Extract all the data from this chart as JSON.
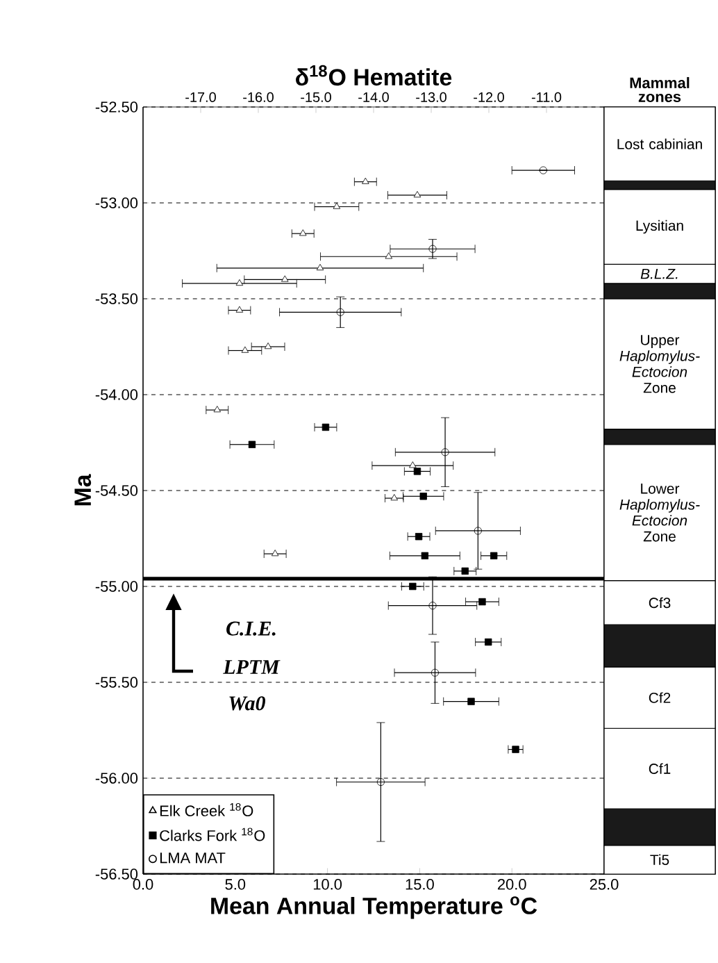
{
  "chart_data": [
    {
      "type": "scatter",
      "x2label": "δ$^{18}$O Hematite",
      "xlabel": "Mean Annual Temperature $^{o}$C",
      "ylabel": "Ma",
      "annotations": [
        "C.I.E.",
        "LPTM",
        "Wa0"
      ],
      "xlim": [
        0,
        25
      ],
      "ylim": [
        -56.5,
        -52.5
      ],
      "xticks": [
        {
          "value": 0,
          "label": "0.0"
        },
        {
          "value": 5,
          "label": "5.0"
        },
        {
          "value": 10,
          "label": "10.0"
        },
        {
          "value": 15,
          "label": "15.0"
        },
        {
          "value": 20,
          "label": "20.0"
        },
        {
          "value": 25,
          "label": "25.0"
        }
      ],
      "yticks": [
        {
          "value": -56.5,
          "label": "-56.50"
        },
        {
          "value": -56,
          "label": "-56.00"
        },
        {
          "value": -55.5,
          "label": "-55.50"
        },
        {
          "value": -55,
          "label": "-55.00"
        },
        {
          "value": -54.5,
          "label": "-54.50"
        },
        {
          "value": -54,
          "label": "-54.00"
        },
        {
          "value": -53.5,
          "label": "-53.50"
        },
        {
          "value": -53,
          "label": "-53.00"
        },
        {
          "value": -52.5,
          "label": "-52.50"
        }
      ],
      "x2lim": [
        -18,
        -10
      ],
      "x2ticks": [
        {
          "value": -17,
          "label": "-17.0"
        },
        {
          "value": -16,
          "label": "-16.0"
        },
        {
          "value": -15,
          "label": "-15.0"
        },
        {
          "value": -14,
          "label": "-14.0"
        },
        {
          "value": -13,
          "label": "-13.0"
        },
        {
          "value": -12,
          "label": "-12.0"
        },
        {
          "value": -11,
          "label": "-11.0"
        }
      ],
      "grid": "y",
      "legend": "bottom left",
      "ref_lines": [
        {
          "axis": "y",
          "value": -54.96
        }
      ],
      "series": [
        {
          "name": "Elk Creek $^{18}$O",
          "color": "#000000",
          "marker": "triangle",
          "x": [
            12.06,
            14.87,
            10.5,
            8.67,
            13.32,
            9.6,
            5.23,
            7.69,
            5.23,
            5.53,
            6.78,
            4.02,
            14.62,
            13.62,
            7.16
          ],
          "values": [
            -52.89,
            -52.96,
            -53.02,
            -53.16,
            -53.28,
            -53.34,
            -53.42,
            -53.4,
            -53.56,
            -53.77,
            -53.75,
            -54.08,
            -54.37,
            -54.54,
            -54.83
          ],
          "xerrors": [
            0.6,
            1.6,
            1.2,
            0.6,
            3.7,
            5.6,
            3.1,
            2.2,
            0.6,
            0.9,
            0.9,
            0.6,
            2.2,
            0.5,
            0.6
          ]
        },
        {
          "name": "Clarks Fork $^{18}$O",
          "color": "#000000",
          "marker": "square",
          "x": [
            9.9,
            5.91,
            14.87,
            15.2,
            14.95,
            15.28,
            19.02,
            17.46,
            14.62,
            18.39,
            18.72,
            17.79,
            20.2
          ],
          "values": [
            -54.17,
            -54.26,
            -54.4,
            -54.53,
            -54.74,
            -54.84,
            -54.84,
            -54.92,
            -55.0,
            -55.08,
            -55.29,
            -55.6,
            -55.85
          ],
          "xerrors": [
            0.6,
            1.2,
            0.7,
            1.1,
            0.6,
            1.9,
            0.7,
            0.6,
            0.6,
            0.9,
            0.7,
            1.5,
            0.4
          ]
        },
        {
          "name": "LMA MAT",
          "color": "#000000",
          "marker": "circle",
          "x": [
            21.7,
            15.7,
            10.7,
            16.38,
            18.16,
            15.7,
            15.83,
            12.89
          ],
          "values": [
            -52.83,
            -53.24,
            -53.57,
            -54.3,
            -54.71,
            -55.1,
            -55.45,
            -56.02
          ],
          "xerrors": [
            1.7,
            2.3,
            3.3,
            2.7,
            2.3,
            2.4,
            2.2,
            2.4
          ],
          "errors": [
            null,
            0.05,
            0.08,
            0.18,
            0.2,
            0.15,
            0.16,
            0.31
          ]
        }
      ]
    },
    {
      "type": "bar",
      "title": "Mammal zones",
      "categories": [
        null
      ],
      "ylim": [
        -56.5,
        -52.5
      ],
      "tick_labels": false,
      "series": [
        {
          "name": "Ti5",
          "color": "#ffffff",
          "base": [
            -56.5
          ],
          "values": [
            0.15
          ]
        },
        {
          "color": "#1a1a1a",
          "base": [
            -56.35
          ],
          "values": [
            0.19
          ]
        },
        {
          "name": "Cf1",
          "color": "#ffffff",
          "base": [
            -56.16
          ],
          "values": [
            0.42
          ]
        },
        {
          "name": "Cf2",
          "color": "#ffffff",
          "base": [
            -55.74
          ],
          "values": [
            0.32
          ]
        },
        {
          "color": "#1a1a1a",
          "base": [
            -55.42
          ],
          "values": [
            0.22
          ]
        },
        {
          "name": "Cf3",
          "color": "#ffffff",
          "base": [
            -55.2
          ],
          "values": [
            0.23
          ]
        },
        {
          "name": "Lower *Haplomylus-Ectocion* Zone",
          "color": "#ffffff",
          "base": [
            -54.97
          ],
          "values": [
            0.71
          ]
        },
        {
          "color": "#1a1a1a",
          "base": [
            -54.26
          ],
          "values": [
            0.08
          ]
        },
        {
          "name": "Upper *Haplomylus-Ectocion* Zone",
          "color": "#ffffff",
          "base": [
            -54.18
          ],
          "values": [
            0.68
          ]
        },
        {
          "color": "#1a1a1a",
          "base": [
            -53.5
          ],
          "values": [
            0.08
          ]
        },
        {
          "name": "*B.L.Z.*",
          "color": "#ffffff",
          "base": [
            -53.42
          ],
          "values": [
            0.1
          ]
        },
        {
          "name": "Lysitian",
          "color": "#ffffff",
          "base": [
            -53.32
          ],
          "values": [
            0.39
          ]
        },
        {
          "color": "#1a1a1a",
          "base": [
            -52.93
          ],
          "values": [
            0.045
          ]
        },
        {
          "name": "Lost cabinian",
          "color": "#ffffff",
          "base": [
            -52.885
          ],
          "values": [
            0.385
          ]
        }
      ]
    }
  ]
}
